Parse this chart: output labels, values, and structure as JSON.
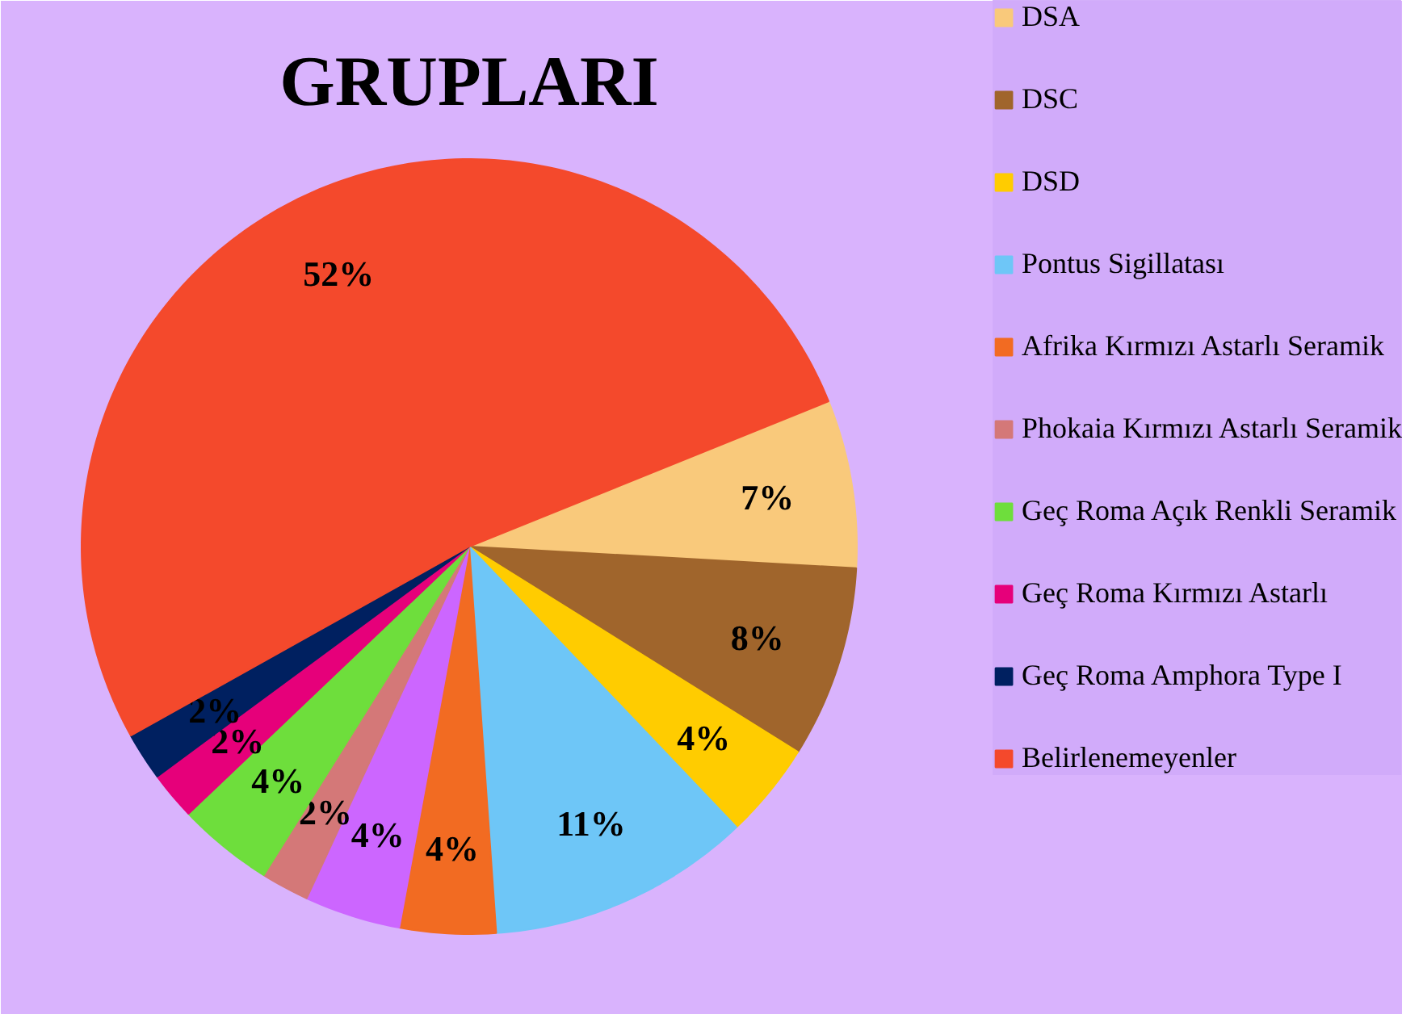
{
  "chart_data": {
    "type": "pie",
    "title": "GRUPLARI",
    "categories": [
      "DSA",
      "DSC",
      "DSD",
      "Pontus Sigillatası",
      "Afrika Kırmızı Astarlı Seramik",
      null,
      "Phokaia Kırmızı Astarlı Seramik",
      "Geç Roma Açık Renkli Seramik",
      "Geç Roma Kırmızı Astarlı",
      "Geç Roma Amphora Type I",
      "Belirlenemeyenler"
    ],
    "values": [
      7,
      8,
      4,
      11,
      4,
      4,
      2,
      4,
      2,
      2,
      52
    ],
    "colors": [
      "#f9c97b",
      "#a0652c",
      "#ffcc00",
      "#6ec6f7",
      "#f26b22",
      "#cc66ff",
      "#d47878",
      "#6ede3c",
      "#e6007a",
      "#002060",
      "#f4492c"
    ],
    "value_labels": [
      "7%",
      "8%",
      "4%",
      "11%",
      "4%",
      "4%",
      "2%",
      "4%",
      "2%",
      "2%",
      "52%"
    ],
    "legend": "right"
  }
}
